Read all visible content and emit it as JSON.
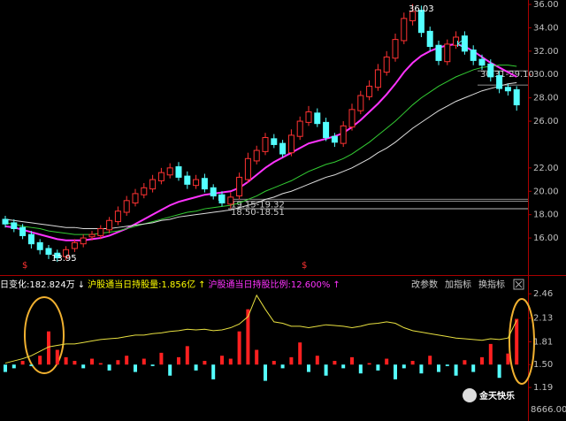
{
  "chart_data": [
    {
      "type": "candlestick",
      "open": [
        17.6,
        17.3,
        16.9,
        16.3,
        15.6,
        15.1,
        14.7,
        14.4,
        15.1,
        15.5,
        16.1,
        16.2,
        16.7,
        17.4,
        18.2,
        19.0,
        19.7,
        20.2,
        20.9,
        21.4,
        22.1,
        21.3,
        20.5,
        21.1,
        20.3,
        19.7,
        18.9,
        19.6,
        21.0,
        22.6,
        23.4,
        24.5,
        24.1,
        23.3,
        24.7,
        25.9,
        26.7,
        25.9,
        24.7,
        24.1,
        25.5,
        26.9,
        28.1,
        28.9,
        30.2,
        31.4,
        32.9,
        34.6,
        35.5,
        33.7,
        32.5,
        31.1,
        32.5,
        33.3,
        32.1,
        31.3,
        30.9,
        29.9,
        28.9,
        28.7
      ],
      "high": [
        17.9,
        17.6,
        17.2,
        16.6,
        15.9,
        15.4,
        15.0,
        15.3,
        15.9,
        16.3,
        16.6,
        17.1,
        17.8,
        18.7,
        19.6,
        20.2,
        20.7,
        21.4,
        22.0,
        22.4,
        22.5,
        21.7,
        21.4,
        21.5,
        20.6,
        20.0,
        19.9,
        21.6,
        23.3,
        23.9,
        25.0,
        24.9,
        24.4,
        25.3,
        26.4,
        27.3,
        27.1,
        26.3,
        25.0,
        26.0,
        27.5,
        28.6,
        29.5,
        30.9,
        32.0,
        33.5,
        35.3,
        36.03,
        35.9,
        34.1,
        32.9,
        33.0,
        33.7,
        33.7,
        32.5,
        31.7,
        31.3,
        30.3,
        29.2,
        29.0
      ],
      "low": [
        16.9,
        16.5,
        15.9,
        15.1,
        14.6,
        14.2,
        13.95,
        14.1,
        14.8,
        15.2,
        15.8,
        15.9,
        16.4,
        17.1,
        17.9,
        18.7,
        19.4,
        19.9,
        20.6,
        21.1,
        20.9,
        20.2,
        20.2,
        19.9,
        19.3,
        18.7,
        18.51,
        19.3,
        20.7,
        22.3,
        23.1,
        23.7,
        22.9,
        23.0,
        24.4,
        25.6,
        25.5,
        24.3,
        23.8,
        23.8,
        25.2,
        26.6,
        27.8,
        28.6,
        29.9,
        31.1,
        32.6,
        34.2,
        33.2,
        32.0,
        30.8,
        30.8,
        32.2,
        31.7,
        30.8,
        30.4,
        29.4,
        28.4,
        28.2,
        26.9
      ],
      "close": [
        17.2,
        16.8,
        16.2,
        15.5,
        15.0,
        14.6,
        14.3,
        15.0,
        15.6,
        16.0,
        16.3,
        16.8,
        17.5,
        18.3,
        19.2,
        19.8,
        20.3,
        21.0,
        21.6,
        22.0,
        21.2,
        20.6,
        21.0,
        20.2,
        19.6,
        19.0,
        19.5,
        21.2,
        22.8,
        23.5,
        24.6,
        24.0,
        23.2,
        24.8,
        26.0,
        26.8,
        25.8,
        24.6,
        24.2,
        25.6,
        27.0,
        28.2,
        29.0,
        30.4,
        31.5,
        33.0,
        34.8,
        35.4,
        33.6,
        32.4,
        31.2,
        32.6,
        33.2,
        32.0,
        31.2,
        30.8,
        29.8,
        28.8,
        28.6,
        27.4
      ],
      "up_color": "#ff3232",
      "down_color": "#54ffff",
      "lines": [
        {
          "color": "#ff33ff",
          "values": [
            17.0,
            16.9,
            16.7,
            16.5,
            16.3,
            16.1,
            15.9,
            15.8,
            15.8,
            15.8,
            15.9,
            16.0,
            16.2,
            16.5,
            16.8,
            17.2,
            17.6,
            18.0,
            18.4,
            18.8,
            19.1,
            19.3,
            19.5,
            19.7,
            19.8,
            19.9,
            20.0,
            20.3,
            20.8,
            21.4,
            22.0,
            22.5,
            22.9,
            23.3,
            23.7,
            24.1,
            24.3,
            24.5,
            24.7,
            25.0,
            25.5,
            26.1,
            26.8,
            27.5,
            28.3,
            29.2,
            30.2,
            31.0,
            31.6,
            32.0,
            32.3,
            32.5,
            32.6,
            32.4,
            32.0,
            31.5,
            31.0,
            30.6,
            30.2,
            29.8
          ]
        },
        {
          "color": "#33cc33",
          "values": [
            17.3,
            17.2,
            17.0,
            16.9,
            16.8,
            16.6,
            16.5,
            16.4,
            16.3,
            16.3,
            16.3,
            16.4,
            16.5,
            16.6,
            16.8,
            17.0,
            17.2,
            17.4,
            17.6,
            17.8,
            18.0,
            18.2,
            18.3,
            18.5,
            18.6,
            18.7,
            18.8,
            19.0,
            19.3,
            19.6,
            20.0,
            20.3,
            20.6,
            20.9,
            21.3,
            21.7,
            22.0,
            22.3,
            22.5,
            22.8,
            23.2,
            23.7,
            24.2,
            24.8,
            25.4,
            26.0,
            26.7,
            27.4,
            28.0,
            28.5,
            29.0,
            29.4,
            29.8,
            30.1,
            30.4,
            30.6,
            30.7,
            30.8,
            30.8,
            30.7
          ]
        },
        {
          "color": "#dddddd",
          "values": [
            17.6,
            17.5,
            17.4,
            17.3,
            17.2,
            17.1,
            17.0,
            16.9,
            16.9,
            16.8,
            16.8,
            16.8,
            16.8,
            16.9,
            17.0,
            17.1,
            17.2,
            17.3,
            17.5,
            17.6,
            17.8,
            17.9,
            18.0,
            18.1,
            18.2,
            18.3,
            18.4,
            18.6,
            18.8,
            19.0,
            19.3,
            19.5,
            19.8,
            20.0,
            20.3,
            20.6,
            20.9,
            21.2,
            21.4,
            21.7,
            22.0,
            22.4,
            22.8,
            23.3,
            23.7,
            24.2,
            24.8,
            25.4,
            25.9,
            26.4,
            26.9,
            27.3,
            27.7,
            28.0,
            28.3,
            28.6,
            28.8,
            29.0,
            29.2,
            29.3
          ]
        }
      ],
      "levels": [
        {
          "label": "19.15-19.32",
          "values": [
            19.15,
            19.32
          ]
        },
        {
          "label": "18.50-18.51",
          "values": [
            18.5,
            18.51
          ]
        },
        {
          "label": "30.31-29.10",
          "values": [
            30.31,
            29.1
          ]
        }
      ],
      "annotations": [
        "36.03",
        "13.95",
        "K",
        "K",
        "$",
        "$"
      ],
      "ylim": [
        12.9,
        36.38
      ],
      "yticks": [
        {
          "value": 36,
          "label": "36.00"
        },
        {
          "value": 34,
          "label": "34.00"
        },
        {
          "value": 32,
          "label": "32.00"
        },
        {
          "value": 30,
          "label": "30.00"
        },
        {
          "value": 28,
          "label": "28.00"
        },
        {
          "value": 26,
          "label": "26.00"
        },
        {
          "value": 22,
          "label": "22.00"
        },
        {
          "value": 20,
          "label": "20.00"
        },
        {
          "value": 18,
          "label": "18.00"
        },
        {
          "value": 16,
          "label": "16.00"
        }
      ]
    },
    {
      "type": "bar",
      "header": [
        {
          "text": "日变化:182.824万",
          "color": "#ffffff"
        },
        {
          "text": "↓",
          "color": "#ffffff"
        },
        {
          "text": "沪股通当日持股量:1.856亿",
          "color": "#ffff00"
        },
        {
          "text": "↑",
          "color": "#ffff00"
        },
        {
          "text": "沪股通当日持股比例:12.600%",
          "color": "#ff33ff"
        },
        {
          "text": "↑",
          "color": "#ff33ff"
        }
      ],
      "buttons": [
        "改参数",
        "加指标",
        "换指标"
      ],
      "values": [
        1.4,
        1.45,
        1.55,
        1.48,
        1.62,
        1.95,
        1.7,
        1.6,
        1.55,
        1.45,
        1.58,
        1.52,
        1.42,
        1.56,
        1.62,
        1.4,
        1.58,
        1.48,
        1.66,
        1.35,
        1.6,
        1.75,
        1.42,
        1.55,
        1.3,
        1.62,
        1.58,
        1.95,
        2.25,
        1.7,
        1.28,
        1.55,
        1.45,
        1.6,
        1.8,
        1.4,
        1.62,
        1.35,
        1.55,
        1.45,
        1.6,
        1.38,
        1.52,
        1.42,
        1.58,
        1.3,
        1.45,
        1.55,
        1.38,
        1.62,
        1.4,
        1.48,
        1.35,
        1.56,
        1.4,
        1.6,
        1.78,
        1.32,
        1.65,
        2.12
      ],
      "up_color": "#ff2020",
      "down_color": "#54ffff",
      "line": {
        "color": "#e8e040",
        "values": [
          1.52,
          1.55,
          1.58,
          1.62,
          1.68,
          1.74,
          1.76,
          1.78,
          1.78,
          1.8,
          1.82,
          1.84,
          1.85,
          1.86,
          1.88,
          1.9,
          1.9,
          1.92,
          1.93,
          1.95,
          1.96,
          1.98,
          1.97,
          1.98,
          1.96,
          1.97,
          2.0,
          2.05,
          2.15,
          2.44,
          2.25,
          2.08,
          2.06,
          2.02,
          2.02,
          2.0,
          2.02,
          2.04,
          2.03,
          2.02,
          2.0,
          2.02,
          2.05,
          2.06,
          2.08,
          2.06,
          2.0,
          1.96,
          1.94,
          1.92,
          1.9,
          1.88,
          1.86,
          1.85,
          1.84,
          1.83,
          1.85,
          1.84,
          1.86,
          2.1
        ]
      },
      "ylim": [
        0.735,
        2.69
      ],
      "yticks": [
        2.46,
        2.13,
        1.81,
        {
          "value": 1.5,
          "label": "1.50"
        },
        1.19
      ],
      "corner_label": "8666.00",
      "watermark": "金天快乐"
    }
  ]
}
